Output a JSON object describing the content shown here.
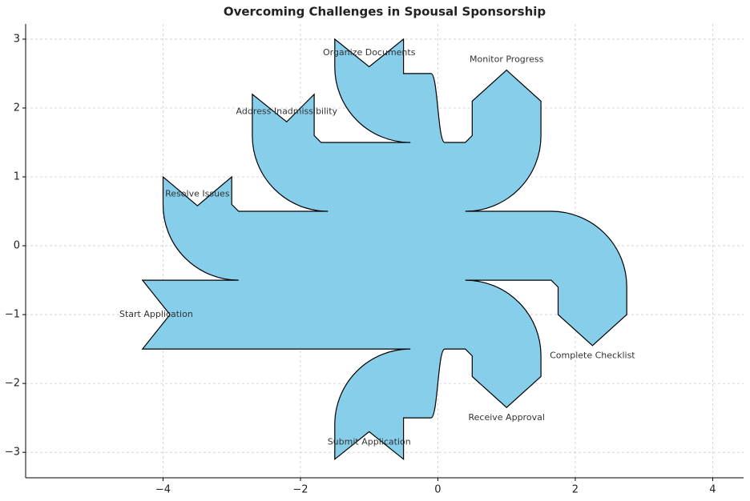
{
  "chart_data": {
    "type": "sankey",
    "title": "Overcoming Challenges in Spousal Sponsorship",
    "color": "#87ceeb",
    "xlim": [
      -6,
      4.45
    ],
    "ylim": [
      -3.37,
      3.22
    ],
    "xticks": [
      {
        "value": -4,
        "label": "−4"
      },
      {
        "value": -2,
        "label": "−2"
      },
      0,
      2,
      4
    ],
    "yticks": [
      {
        "value": -3,
        "label": "−3"
      },
      {
        "value": -2,
        "label": "−2"
      },
      {
        "value": -1,
        "label": "−1"
      },
      0,
      1,
      2,
      3
    ],
    "grid": true,
    "labels": [
      "Start Application",
      "Resolve Issues",
      "Address Inadmissibility",
      "Organize Documents",
      "Monitor Progress",
      "Complete Checklist",
      "Receive Approval",
      "Submit Application"
    ]
  }
}
